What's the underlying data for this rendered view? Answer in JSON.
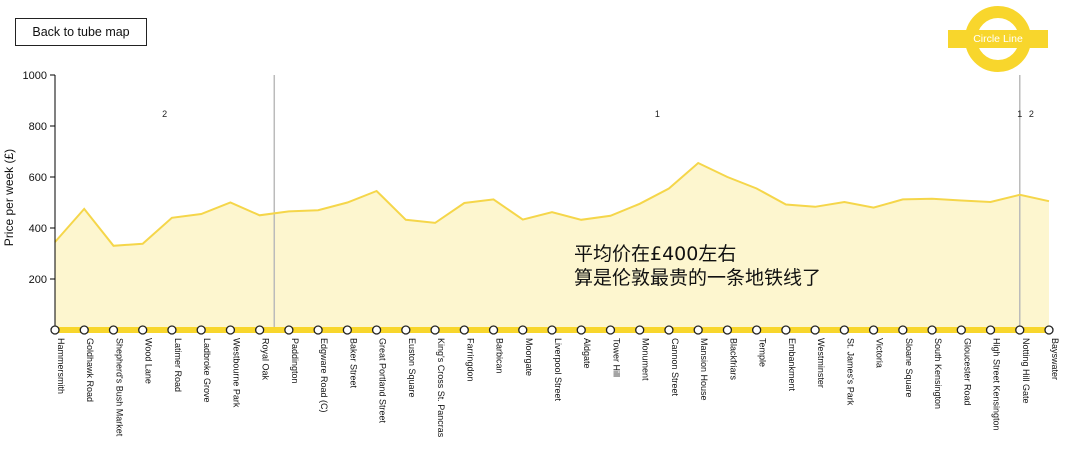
{
  "back_button": {
    "label": "Back to tube map"
  },
  "roundel": {
    "label": "Circle Line",
    "color": "#f8d62c"
  },
  "annotation": {
    "lines": [
      "平均价在£400左右",
      "算是伦敦最贵的一条地铁线了"
    ]
  },
  "chart_data": {
    "type": "area",
    "title": "",
    "xlabel": "",
    "ylabel": "Price per week (£)",
    "ylim": [
      0,
      1000
    ],
    "yticks": [
      200,
      400,
      600,
      800,
      1000
    ],
    "colors": {
      "line": "#f5d64a",
      "fill": "#fdf6cf",
      "track": "#f8d62c",
      "divider": "#bbbbbb"
    },
    "x": [
      "Hammersmith",
      "Goldhawk Road",
      "Shepherd's Bush Market",
      "Wood Lane",
      "Latimer Road",
      "Ladbroke Grove",
      "Westbourne Park",
      "Royal Oak",
      "Paddington",
      "Edgware Road (C)",
      "Baker Street",
      "Great Portland Street",
      "Euston Square",
      "King's Cross St. Pancras",
      "Farringdon",
      "Barbican",
      "Moorgate",
      "Liverpool Street",
      "Aldgate",
      "Tower Hill",
      "Monument",
      "Cannon Street",
      "Mansion House",
      "Blackfriars",
      "Temple",
      "Embankment",
      "Westminster",
      "St. James's Park",
      "Victoria",
      "Sloane Square",
      "South Kensington",
      "Gloucester Road",
      "High Street Kensington",
      "Notting Hill Gate",
      "Bayswater"
    ],
    "values": [
      345,
      475,
      330,
      338,
      440,
      455,
      500,
      450,
      465,
      470,
      500,
      545,
      432,
      420,
      498,
      512,
      433,
      462,
      432,
      448,
      495,
      555,
      655,
      600,
      555,
      492,
      483,
      502,
      480,
      512,
      515,
      508,
      502,
      530,
      505
    ],
    "zones": [
      {
        "label": "2",
        "stations": [
          "Hammersmith",
          "Royal Oak"
        ]
      },
      {
        "label": "1",
        "stations": [
          "Paddington",
          "Notting Hill Gate"
        ]
      },
      {
        "label": "1",
        "stations": [
          "Notting Hill Gate",
          "Notting Hill Gate"
        ]
      },
      {
        "label": "2",
        "stations": [
          "Notting Hill Gate",
          "Bayswater"
        ]
      }
    ],
    "zone_boundaries": [
      "Royal Oak",
      "Notting Hill Gate"
    ],
    "grid": false,
    "legend": "none"
  }
}
